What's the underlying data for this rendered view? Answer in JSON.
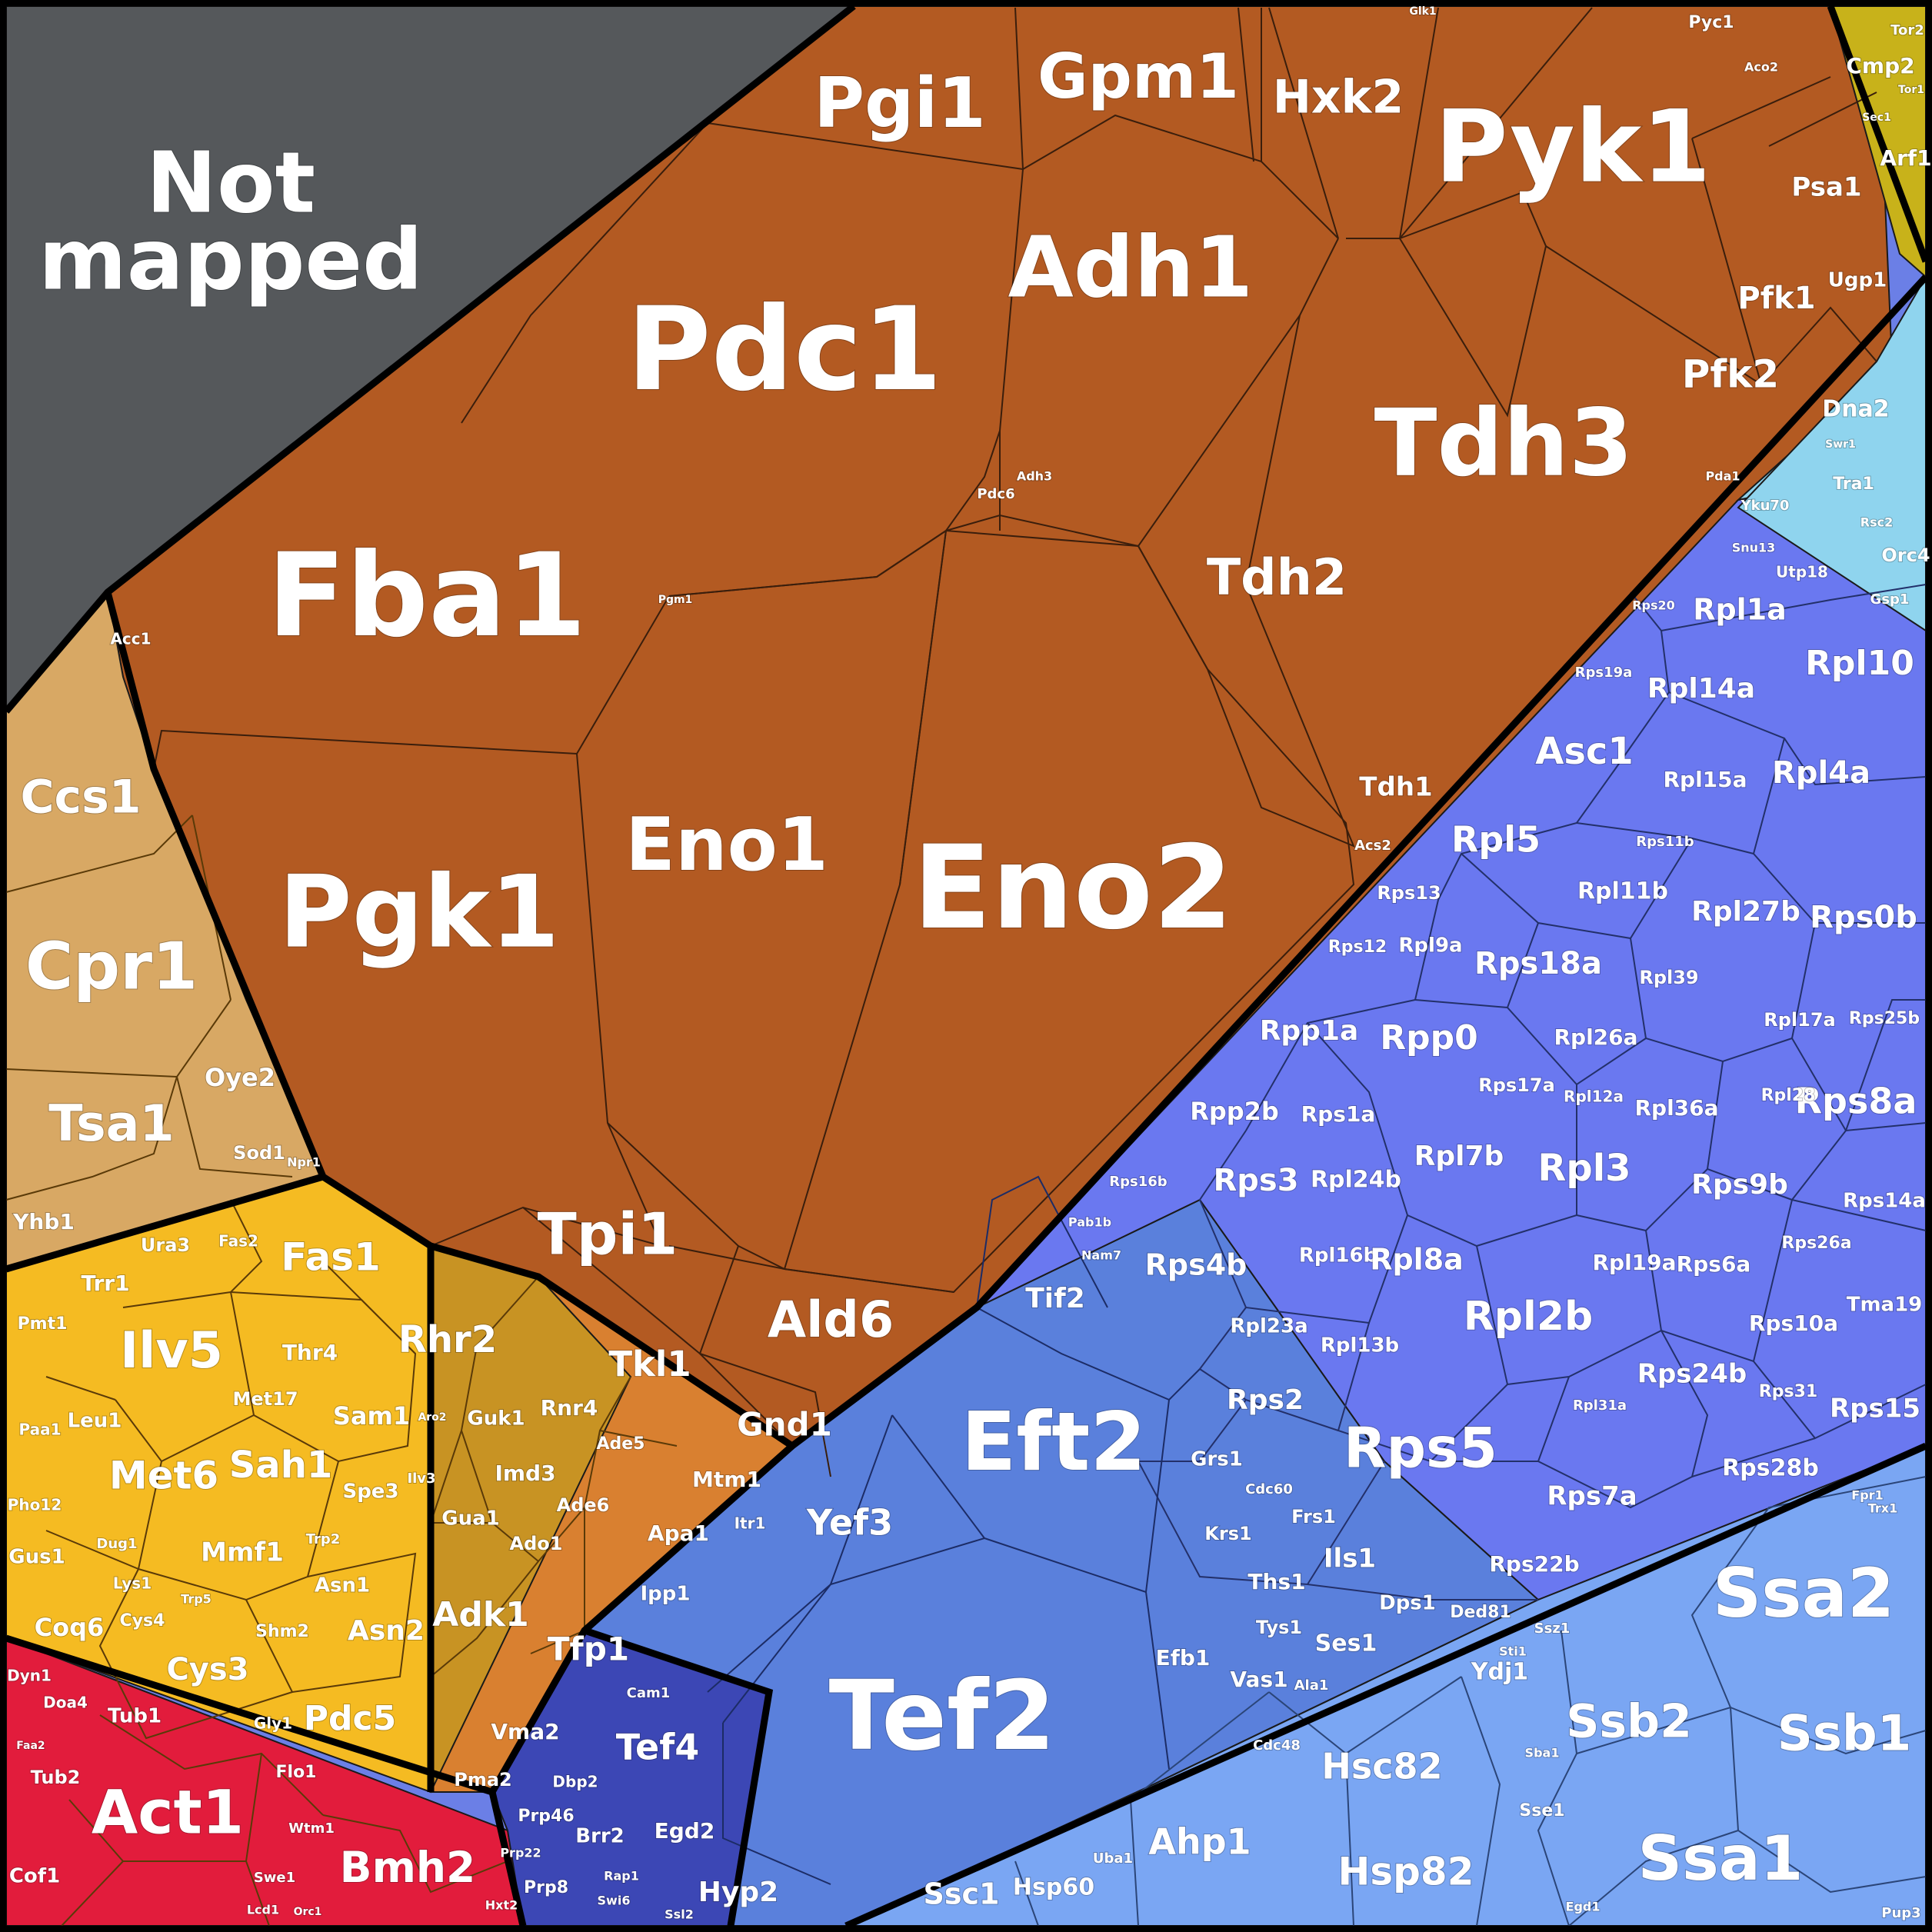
{
  "groups": {
    "not_mapped": {
      "color": "#55585b",
      "labels": [
        "Not",
        "mapped"
      ]
    },
    "glycolysis": {
      "color": "#b35a22"
    },
    "sugar_accent": {
      "color": "#c3642a"
    },
    "tan": {
      "color": "#d7a463"
    },
    "amino_acid": {
      "color": "#f2b91c"
    },
    "nucleotide": {
      "color": "#c8901c"
    },
    "orange_misc": {
      "color": "#e0832c"
    },
    "red": {
      "color": "#e11b3a"
    },
    "translation": {
      "color": "#5f83de"
    },
    "ribosome": {
      "color": "#6677f0"
    },
    "chaperone": {
      "color": "#78a4f2"
    },
    "cyan": {
      "color": "#8fd6ef"
    },
    "olive": {
      "color": "#c8b21a"
    },
    "rrna": {
      "color": "#4a68d2"
    },
    "indigo": {
      "color": "#3a42b0"
    }
  },
  "labels": {
    "Pdc1": "Pdc1",
    "Fba1": "Fba1",
    "Pgk1": "Pgk1",
    "Eno1": "Eno1",
    "Eno2": "Eno2",
    "Pgi1": "Pgi1",
    "Gpm1": "Gpm1",
    "Hxk2": "Hxk2",
    "Pyk1": "Pyk1",
    "Adh1": "Adh1",
    "Tdh3": "Tdh3",
    "Tdh2": "Tdh2",
    "Tdh1": "Tdh1",
    "Tpi1": "Tpi1",
    "Ald6": "Ald6",
    "Tkl1": "Tkl1",
    "Gnd1": "Gnd1",
    "Pfk1": "Pfk1",
    "Pfk2": "Pfk2",
    "Psa1": "Psa1",
    "Ugp1": "Ugp1",
    "Pyc1": "Pyc1",
    "Acs2": "Acs2",
    "Pda1": "Pda1",
    "Adh3": "Adh3",
    "Pdc6": "Pdc6",
    "Pgm1": "Pgm1",
    "Glk1": "Glk1",
    "Acc1": "Acc1",
    "Aco2": "Aco2",
    "Ccs1": "Ccs1",
    "Cpr1": "Cpr1",
    "Tsa1": "Tsa1",
    "Oye2": "Oye2",
    "Sod1": "Sod1",
    "Yhb1": "Yhb1",
    "Npr1": "Npr1",
    "Ilv5": "Ilv5",
    "Met6": "Met6",
    "Sah1": "Sah1",
    "Thr4": "Thr4",
    "Sam1": "Sam1",
    "Met17": "Met17",
    "Leu1": "Leu1",
    "Mmf1": "Mmf1",
    "Cys3": "Cys3",
    "Asn1": "Asn1",
    "Asn2": "Asn2",
    "Pdc5": "Pdc5",
    "Shm2": "Shm2",
    "Spe3": "Spe3",
    "Cys4": "Cys4",
    "Lys1": "Lys1",
    "Dug1": "Dug1",
    "Gly1": "Gly1",
    "Trp2": "Trp2",
    "Trp5": "Trp5",
    "Coq6": "Coq6",
    "Gus1": "Gus1",
    "Pho12": "Pho12",
    "Paa1": "Paa1",
    "Pmt1": "Pmt1",
    "Trr1": "Trr1",
    "Ura3": "Ura3",
    "Fas2": "Fas2",
    "Fas1": "Fas1",
    "Rhr2": "Rhr2",
    "Guk1": "Guk1",
    "Rnr4": "Rnr4",
    "Imd3": "Imd3",
    "Ade5": "Ade5",
    "Ade6": "Ade6",
    "Gua1": "Gua1",
    "Ado1": "Ado1",
    "Adk1": "Adk1",
    "Ilv3": "Ilv3",
    "Aro2": "Aro2",
    "Apa1": "Apa1",
    "Ipp1": "Ipp1",
    "Tfp1": "Tfp1",
    "Vma2": "Vma2",
    "Pma2": "Pma2",
    "Mtm1": "Mtm1",
    "Itr1": "Itr1",
    "Act1": "Act1",
    "Bmh2": "Bmh2",
    "Tub1": "Tub1",
    "Tub2": "Tub2",
    "Cof1": "Cof1",
    "Doa4": "Doa4",
    "Dyn1": "Dyn1",
    "Flo1": "Flo1",
    "Wtm1": "Wtm1",
    "Swe1": "Swe1",
    "Lcd1": "Lcd1",
    "Hxt2": "Hxt2",
    "Orc1": "Orc1",
    "Faa2": "Faa2",
    "Eft2": "Eft2",
    "Tef2": "Tef2",
    "Yef3": "Yef3",
    "Tef4": "Tef4",
    "Efb1": "Efb1",
    "Egd2": "Egd2",
    "Hyp2": "Hyp2",
    "Tif2": "Tif2",
    "Grs1": "Grs1",
    "Krs1": "Krs1",
    "Ths1": "Ths1",
    "Tys1": "Tys1",
    "Vas1": "Vas1",
    "Ils1": "Ils1",
    "Ses1": "Ses1",
    "Dps1": "Dps1",
    "Frs1": "Frs1",
    "Ded81": "Ded81",
    "Cdc60": "Cdc60",
    "Ala1": "Ala1",
    "Cam1": "Cam1",
    "Dbp2": "Dbp2",
    "Prp46": "Prp46",
    "Brr2": "Brr2",
    "Prp8": "Prp8",
    "Prp22": "Prp22",
    "Rap1": "Rap1",
    "Swi6": "Swi6",
    "Ssl2": "Ssl2",
    "Rpl1a": "Rpl1a",
    "Rpl10": "Rpl10",
    "Rpl14a": "Rpl14a",
    "Asc1": "Asc1",
    "Rpl15a": "Rpl15a",
    "Rpl4a": "Rpl4a",
    "Rpl5": "Rpl5",
    "Rpl11b": "Rpl11b",
    "Rpl27b": "Rpl27b",
    "Rps0b": "Rps0b",
    "Rps13": "Rps13",
    "Rpl9a": "Rpl9a",
    "Rps12": "Rps12",
    "Rps18a": "Rps18a",
    "Rpl39": "Rpl39",
    "Rpp1a": "Rpp1a",
    "Rpp0": "Rpp0",
    "Rpl26a": "Rpl26a",
    "Rpl17a": "Rpl17a",
    "Rps25b": "Rps25b",
    "Rps8a": "Rps8a",
    "Rpp2b": "Rpp2b",
    "Rps1a": "Rps1a",
    "Rps17a": "Rps17a",
    "Rpl12a": "Rpl12a",
    "Rpl36a": "Rpl36a",
    "Rpl28": "Rpl28",
    "Rps3": "Rps3",
    "Rpl24b": "Rpl24b",
    "Rpl7b": "Rpl7b",
    "Rpl3": "Rpl3",
    "Rps9b": "Rps9b",
    "Rps14a": "Rps14a",
    "Rps4b": "Rps4b",
    "Rpl16b": "Rpl16b",
    "Rpl8a": "Rpl8a",
    "Rpl19a": "Rpl19a",
    "Rps6a": "Rps6a",
    "Rps26a": "Rps26a",
    "Rpl23a": "Rpl23a",
    "Rpl13b": "Rpl13b",
    "Rpl2b": "Rpl2b",
    "Rps10a": "Rps10a",
    "Tma19": "Tma19",
    "Rps2": "Rps2",
    "Rps5": "Rps5",
    "Rps24b": "Rps24b",
    "Rps31": "Rps31",
    "Rps15": "Rps15",
    "Rpl31a": "Rpl31a",
    "Rps7a": "Rps7a",
    "Rps28b": "Rps28b",
    "Rps22b": "Rps22b",
    "Rps16b": "Rps16b",
    "Rps20": "Rps20",
    "Rps19a": "Rps19a",
    "Rps11b": "Rps11b",
    "Nam7": "Nam7",
    "Pab1b": "Pab1b",
    "Ssa2": "Ssa2",
    "Ssb2": "Ssb2",
    "Ssb1": "Ssb1",
    "Ssa1": "Ssa1",
    "Hsc82": "Hsc82",
    "Hsp82": "Hsp82",
    "Ahp1": "Ahp1",
    "Sse1": "Sse1",
    "Ydj1": "Ydj1",
    "Hsp60": "Hsp60",
    "Ssc1": "Ssc1",
    "Uba1": "Uba1",
    "Ssz1": "Ssz1",
    "Sba1": "Sba1",
    "Cdc48": "Cdc48",
    "Stl1": "Sti1",
    "Egd1": "Egd1",
    "Pup3": "Pup3",
    "Fpr1": "Fpr1",
    "Trx1": "Trx1",
    "Dna2": "Dna2",
    "Tra1": "Tra1",
    "Orc4": "Orc4",
    "Yku70": "Yku70",
    "Utp18": "Utp18",
    "Gsp1": "Gsp1",
    "Snu13": "Snu13",
    "Rsc2": "Rsc2",
    "Swr1": "Swr1",
    "Cmp2": "Cmp2",
    "Arf1": "Arf1",
    "Tor2": "Tor2",
    "Tor1": "Tor1",
    "Sec1": "Sec1"
  }
}
